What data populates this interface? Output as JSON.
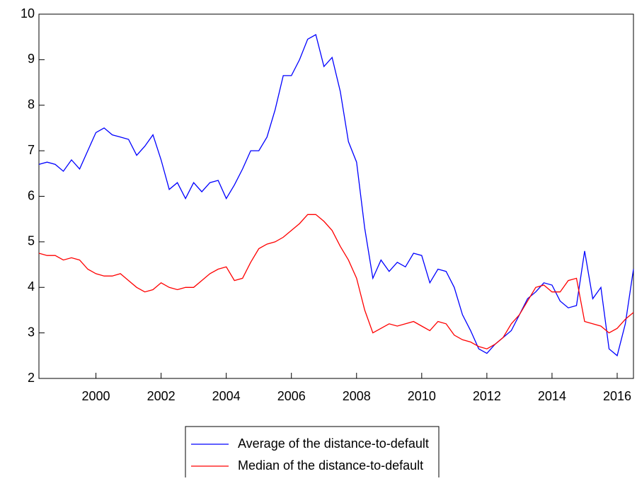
{
  "chart_data": {
    "type": "line",
    "x": [
      1998.25,
      1998.5,
      1998.75,
      1999,
      1999.25,
      1999.5,
      1999.75,
      2000,
      2000.25,
      2000.5,
      2000.75,
      2001,
      2001.25,
      2001.5,
      2001.75,
      2002,
      2002.25,
      2002.5,
      2002.75,
      2003,
      2003.25,
      2003.5,
      2003.75,
      2004,
      2004.25,
      2004.5,
      2004.75,
      2005,
      2005.25,
      2005.5,
      2005.75,
      2006,
      2006.25,
      2006.5,
      2006.75,
      2007,
      2007.25,
      2007.5,
      2007.75,
      2008,
      2008.25,
      2008.5,
      2008.75,
      2009,
      2009.25,
      2009.5,
      2009.75,
      2010,
      2010.25,
      2010.5,
      2010.75,
      2011,
      2011.25,
      2011.5,
      2011.75,
      2012,
      2012.25,
      2012.5,
      2012.75,
      2013,
      2013.25,
      2013.5,
      2013.75,
      2014,
      2014.25,
      2014.5,
      2014.75,
      2015,
      2015.25,
      2015.5,
      2015.75,
      2016,
      2016.25,
      2016.5
    ],
    "series": [
      {
        "name": "Average of the distance-to-default",
        "color": "#0000ff",
        "values": [
          6.7,
          6.75,
          6.7,
          6.55,
          6.8,
          6.6,
          7.0,
          7.4,
          7.5,
          7.35,
          7.3,
          7.25,
          6.9,
          7.1,
          7.35,
          6.8,
          6.15,
          6.3,
          5.95,
          6.3,
          6.1,
          6.3,
          6.35,
          5.95,
          6.25,
          6.6,
          7.0,
          7.0,
          7.3,
          7.9,
          8.65,
          8.65,
          9.0,
          9.45,
          9.55,
          8.85,
          9.05,
          8.3,
          7.2,
          6.75,
          5.3,
          4.2,
          4.6,
          4.35,
          4.55,
          4.45,
          4.75,
          4.7,
          4.1,
          4.4,
          4.35,
          4.0,
          3.4,
          3.05,
          2.65,
          2.55,
          2.75,
          2.9,
          3.05,
          3.4,
          3.75,
          3.9,
          4.1,
          4.05,
          3.7,
          3.55,
          3.6,
          4.8,
          3.75,
          4.0,
          2.65,
          2.5,
          3.2,
          4.4
        ]
      },
      {
        "name": "Median of the distance-to-default",
        "color": "#ff0000",
        "values": [
          4.75,
          4.7,
          4.7,
          4.6,
          4.65,
          4.6,
          4.4,
          4.3,
          4.25,
          4.25,
          4.3,
          4.15,
          4.0,
          3.9,
          3.95,
          4.1,
          4.0,
          3.95,
          4.0,
          4.0,
          4.15,
          4.3,
          4.4,
          4.45,
          4.15,
          4.2,
          4.55,
          4.85,
          4.95,
          5.0,
          5.1,
          5.25,
          5.4,
          5.6,
          5.6,
          5.45,
          5.25,
          4.9,
          4.6,
          4.2,
          3.5,
          3.0,
          3.1,
          3.2,
          3.15,
          3.2,
          3.25,
          3.15,
          3.05,
          3.25,
          3.2,
          2.95,
          2.85,
          2.8,
          2.7,
          2.65,
          2.75,
          2.9,
          3.2,
          3.4,
          3.7,
          4.0,
          4.05,
          3.9,
          3.9,
          4.15,
          4.2,
          3.25,
          3.2,
          3.15,
          3.0,
          3.1,
          3.3,
          3.45
        ]
      }
    ],
    "xlim": [
      1998.25,
      2016.5
    ],
    "xticks": [
      2000,
      2002,
      2004,
      2006,
      2008,
      2010,
      2012,
      2014,
      2016
    ],
    "ylim": [
      2,
      10
    ],
    "yticks": [
      2,
      3,
      4,
      5,
      6,
      7,
      8,
      9,
      10
    ],
    "grid": false
  }
}
